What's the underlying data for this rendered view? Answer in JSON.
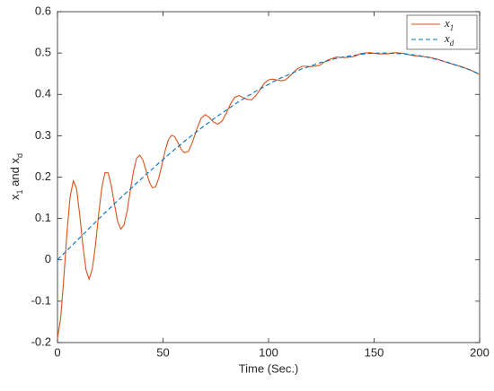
{
  "chart_data": {
    "type": "line",
    "xlabel": "Time (Sec.)",
    "ylabel": "x1 and xd",
    "x": [
      0,
      1.5,
      3,
      4.5,
      6,
      7.5,
      9,
      10.5,
      12,
      13.5,
      15,
      16.5,
      18,
      19.5,
      21,
      22.5,
      24,
      25.5,
      27,
      28.5,
      30,
      31.5,
      33,
      34.5,
      36,
      37.5,
      39,
      40.5,
      42,
      43.5,
      45,
      46.5,
      48,
      49.5,
      51,
      52.5,
      54,
      55.5,
      57,
      58.5,
      60,
      62,
      64,
      66,
      68,
      70,
      72,
      74,
      76,
      78,
      80,
      82,
      84,
      86,
      88,
      90,
      92,
      94,
      96,
      98,
      100,
      102,
      104,
      106,
      108,
      110,
      112,
      114,
      116,
      118,
      120,
      124,
      128,
      132,
      136,
      140,
      144,
      148,
      152,
      156,
      160,
      164,
      168,
      172,
      176,
      180,
      184,
      188,
      192,
      196,
      200
    ],
    "series": [
      {
        "name": "x1",
        "color": "#d95319",
        "dash": false,
        "values": [
          -0.19,
          -0.141,
          -0.044,
          0.067,
          0.153,
          0.191,
          0.173,
          0.111,
          0.036,
          -0.024,
          -0.047,
          -0.022,
          0.035,
          0.11,
          0.174,
          0.211,
          0.21,
          0.179,
          0.134,
          0.093,
          0.074,
          0.084,
          0.118,
          0.167,
          0.214,
          0.246,
          0.253,
          0.241,
          0.215,
          0.188,
          0.174,
          0.177,
          0.198,
          0.23,
          0.264,
          0.29,
          0.301,
          0.298,
          0.284,
          0.268,
          0.259,
          0.262,
          0.285,
          0.316,
          0.342,
          0.351,
          0.344,
          0.333,
          0.328,
          0.336,
          0.355,
          0.377,
          0.393,
          0.397,
          0.392,
          0.388,
          0.387,
          0.397,
          0.412,
          0.427,
          0.435,
          0.437,
          0.435,
          0.433,
          0.435,
          0.444,
          0.454,
          0.463,
          0.468,
          0.468,
          0.467,
          0.47,
          0.483,
          0.49,
          0.489,
          0.491,
          0.499,
          0.501,
          0.498,
          0.498,
          0.501,
          0.499,
          0.494,
          0.492,
          0.49,
          0.485,
          0.478,
          0.472,
          0.466,
          0.458,
          0.448
        ]
      },
      {
        "name": "xd",
        "color": "#0072bd",
        "dash": true,
        "values": [
          0,
          0.008,
          0.015,
          0.023,
          0.03,
          0.038,
          0.046,
          0.053,
          0.061,
          0.068,
          0.076,
          0.084,
          0.091,
          0.099,
          0.106,
          0.114,
          0.121,
          0.128,
          0.136,
          0.143,
          0.15,
          0.158,
          0.164,
          0.171,
          0.178,
          0.186,
          0.192,
          0.2,
          0.207,
          0.213,
          0.22,
          0.227,
          0.234,
          0.24,
          0.247,
          0.254,
          0.26,
          0.267,
          0.273,
          0.279,
          0.286,
          0.294,
          0.302,
          0.31,
          0.318,
          0.326,
          0.333,
          0.341,
          0.348,
          0.355,
          0.362,
          0.369,
          0.376,
          0.383,
          0.389,
          0.396,
          0.401,
          0.408,
          0.413,
          0.419,
          0.424,
          0.43,
          0.435,
          0.44,
          0.444,
          0.449,
          0.453,
          0.458,
          0.462,
          0.465,
          0.469,
          0.476,
          0.481,
          0.487,
          0.491,
          0.494,
          0.497,
          0.499,
          0.5,
          0.5,
          0.499,
          0.498,
          0.496,
          0.493,
          0.489,
          0.484,
          0.479,
          0.472,
          0.465,
          0.458,
          0.449
        ]
      }
    ],
    "xlim": [
      0,
      200
    ],
    "xticks": [
      0,
      50,
      100,
      150,
      200
    ],
    "ylim": [
      -0.2,
      0.6
    ],
    "yticks": [
      -0.2,
      -0.1,
      0,
      0.1,
      0.2,
      0.3,
      0.4,
      0.5,
      0.6
    ],
    "grid": false,
    "legend": "northeast"
  }
}
